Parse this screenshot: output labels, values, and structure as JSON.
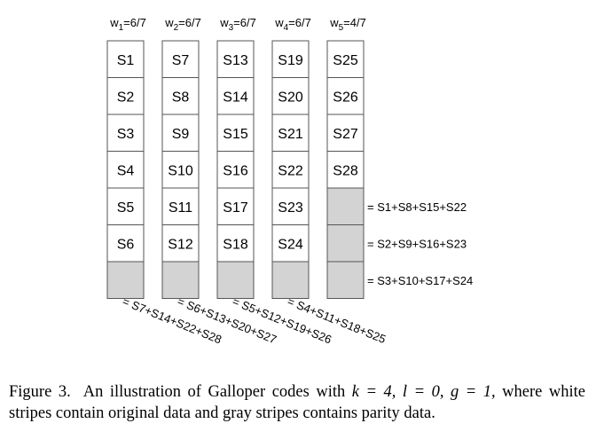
{
  "columns": [
    {
      "header": {
        "base": "w",
        "sub": "1",
        "value": "=6/7"
      },
      "data_cells": [
        "S1",
        "S2",
        "S3",
        "S4",
        "S5",
        "S6"
      ],
      "parity_count": 1
    },
    {
      "header": {
        "base": "w",
        "sub": "2",
        "value": "=6/7"
      },
      "data_cells": [
        "S7",
        "S8",
        "S9",
        "S10",
        "S11",
        "S12"
      ],
      "parity_count": 1
    },
    {
      "header": {
        "base": "w",
        "sub": "3",
        "value": "=6/7"
      },
      "data_cells": [
        "S13",
        "S14",
        "S15",
        "S16",
        "S17",
        "S18"
      ],
      "parity_count": 1
    },
    {
      "header": {
        "base": "w",
        "sub": "4",
        "value": "=6/7"
      },
      "data_cells": [
        "S19",
        "S20",
        "S21",
        "S22",
        "S23",
        "S24"
      ],
      "parity_count": 1
    },
    {
      "header": {
        "base": "w",
        "sub": "5",
        "value": "=4/7"
      },
      "data_cells": [
        "S25",
        "S26",
        "S27",
        "S28"
      ],
      "parity_count": 3
    }
  ],
  "row_parity_labels": [
    "= S1+S8+S15+S22",
    "= S2+S9+S16+S23",
    "= S3+S10+S17+S24"
  ],
  "column_parity_labels": [
    "= S7+S14+S22+S28",
    "= S6+S13+S20+S27",
    "= S5+S12+S19+S26",
    "= S4+S11+S18+S25"
  ],
  "colors": {
    "data_fill": "#ffffff",
    "parity_fill": "#d3d3d3",
    "stroke": "#555555"
  },
  "caption": {
    "label": "Figure 3.",
    "text_before": "An illustration of Galloper codes with ",
    "math": "k = 4, l = 0, g = 1,",
    "text_after": " where white stripes contain original data and gray stripes contains parity data."
  }
}
